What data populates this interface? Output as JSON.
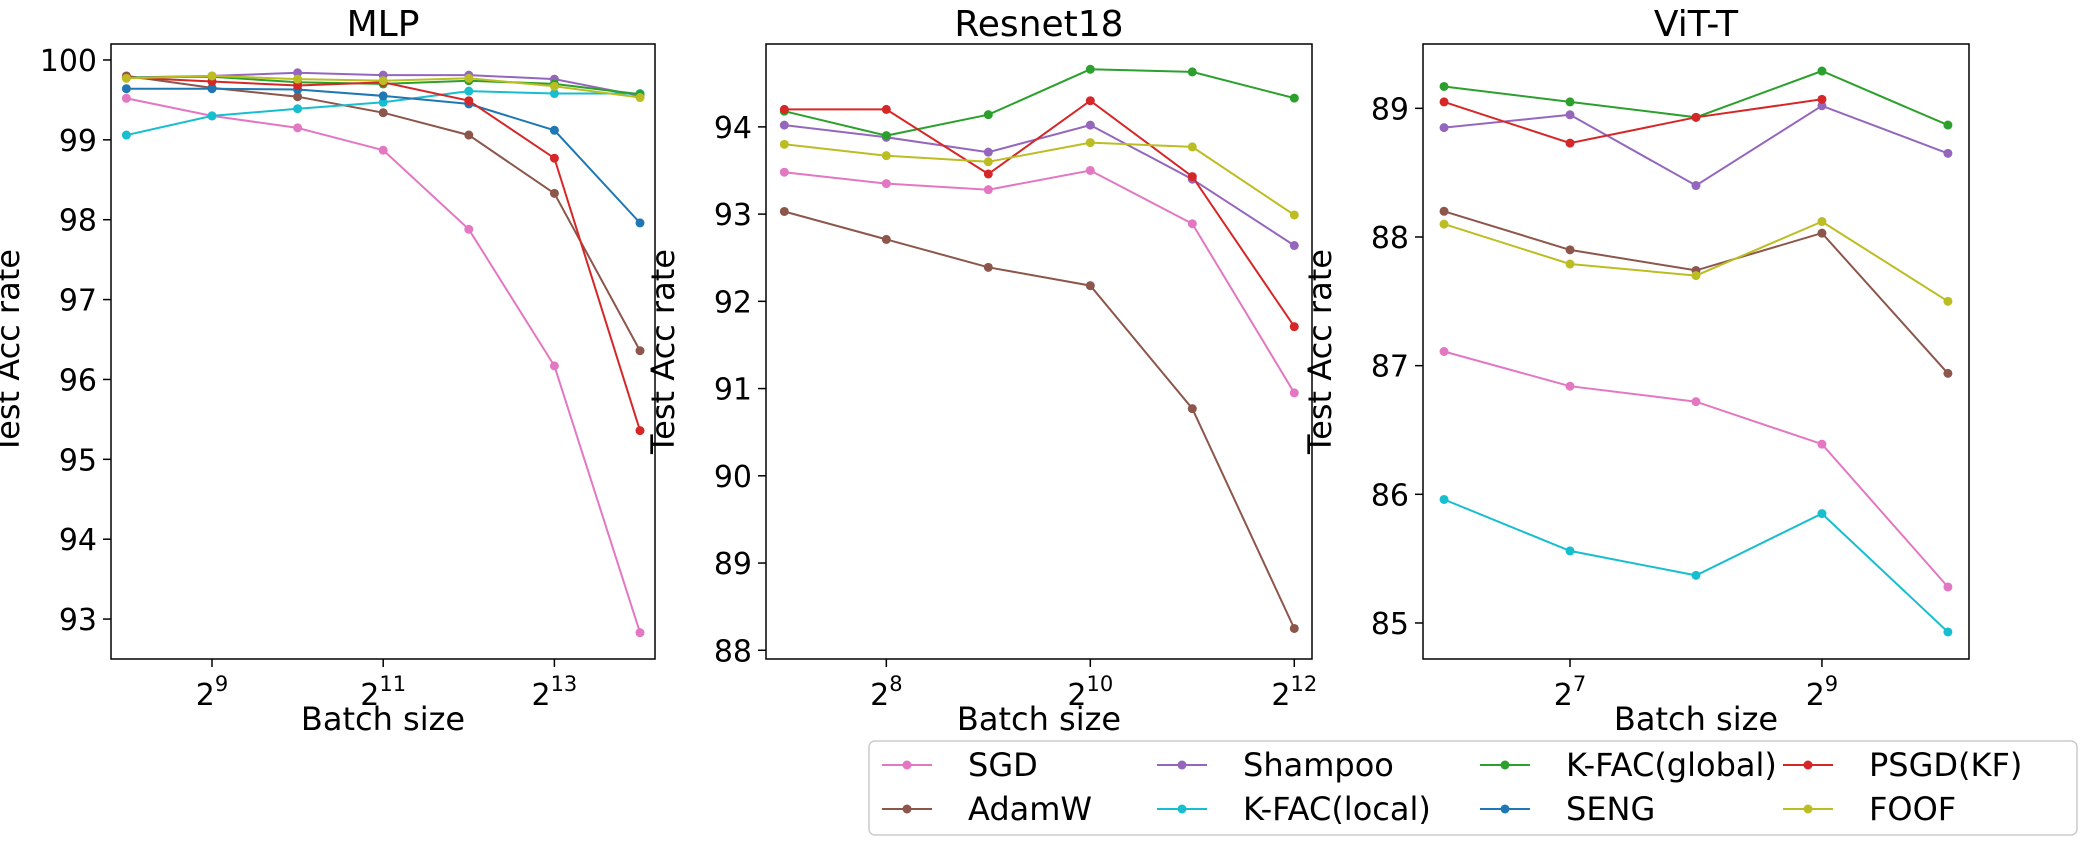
{
  "chart_data": [
    {
      "type": "line",
      "title": "MLP",
      "xlabel": "Batch size",
      "ylabel": "Test Acc rate",
      "x_scale": "log2",
      "x": [
        256,
        512,
        1024,
        2048,
        4096,
        8192,
        16384
      ],
      "x_ticks": [
        512,
        2048,
        8192
      ],
      "x_tick_labels": [
        {
          "base": "2",
          "exp": "9"
        },
        {
          "base": "2",
          "exp": "11"
        },
        {
          "base": "2",
          "exp": "13"
        }
      ],
      "xlim": [
        226,
        18500
      ],
      "ylim": [
        92.5,
        100.2
      ],
      "y_ticks": [
        93,
        94,
        95,
        96,
        97,
        98,
        99,
        100
      ],
      "series": [
        {
          "name": "SGD",
          "values": [
            99.52,
            99.3,
            99.15,
            98.87,
            97.88,
            96.17,
            92.83
          ]
        },
        {
          "name": "AdamW",
          "values": [
            99.8,
            99.65,
            99.54,
            99.34,
            99.06,
            98.33,
            96.36
          ]
        },
        {
          "name": "Shampoo",
          "values": [
            99.78,
            99.8,
            99.84,
            99.81,
            99.81,
            99.76,
            99.55
          ]
        },
        {
          "name": "K-FAC(local)",
          "values": [
            99.06,
            99.3,
            99.39,
            99.47,
            99.61,
            99.58,
            99.58
          ]
        },
        {
          "name": "K-FAC(global)",
          "values": [
            99.78,
            99.79,
            99.72,
            99.7,
            99.74,
            99.7,
            99.57
          ]
        },
        {
          "name": "SENG",
          "values": [
            99.64,
            99.64,
            99.63,
            99.55,
            99.45,
            99.12,
            97.96
          ]
        },
        {
          "name": "PSGD(KF)",
          "values": [
            99.78,
            99.73,
            99.68,
            99.72,
            99.49,
            98.77,
            95.36
          ]
        },
        {
          "name": "FOOF",
          "values": [
            99.77,
            99.8,
            99.76,
            99.74,
            99.77,
            99.67,
            99.53
          ]
        }
      ]
    },
    {
      "type": "line",
      "title": "Resnet18",
      "xlabel": "Batch size",
      "ylabel": "Test Acc rate",
      "x_scale": "log2",
      "x": [
        128,
        256,
        512,
        1024,
        2048,
        4096
      ],
      "x_ticks": [
        256,
        1024,
        4096
      ],
      "x_tick_labels": [
        {
          "base": "2",
          "exp": "8"
        },
        {
          "base": "2",
          "exp": "10"
        },
        {
          "base": "2",
          "exp": "12"
        }
      ],
      "xlim": [
        113,
        4620
      ],
      "ylim": [
        87.9,
        94.95
      ],
      "y_ticks": [
        88,
        89,
        90,
        91,
        92,
        93,
        94
      ],
      "series": [
        {
          "name": "SGD",
          "values": [
            93.48,
            93.35,
            93.28,
            93.5,
            92.89,
            90.95
          ]
        },
        {
          "name": "AdamW",
          "values": [
            93.03,
            92.71,
            92.39,
            92.18,
            90.77,
            88.25
          ]
        },
        {
          "name": "Shampoo",
          "values": [
            94.02,
            93.88,
            93.71,
            94.02,
            93.4,
            92.64
          ]
        },
        {
          "name": "K-FAC(global)",
          "values": [
            94.18,
            93.9,
            94.14,
            94.66,
            94.63,
            94.33
          ]
        },
        {
          "name": "PSGD(KF)",
          "values": [
            94.2,
            94.2,
            93.46,
            94.3,
            93.43,
            91.71
          ]
        },
        {
          "name": "FOOF",
          "values": [
            93.8,
            93.67,
            93.6,
            93.82,
            93.77,
            92.99
          ]
        }
      ]
    },
    {
      "type": "line",
      "title": "ViT-T",
      "xlabel": "Batch size",
      "ylabel": "Test Acc rate",
      "x_scale": "log2",
      "x": [
        64,
        128,
        256,
        512,
        1024
      ],
      "x_ticks": [
        128,
        512
      ],
      "x_tick_labels": [
        {
          "base": "2",
          "exp": "7"
        },
        {
          "base": "2",
          "exp": "9"
        }
      ],
      "xlim": [
        57,
        1150
      ],
      "ylim": [
        84.72,
        89.5
      ],
      "y_ticks": [
        85,
        86,
        87,
        88,
        89
      ],
      "series": [
        {
          "name": "SGD",
          "values": [
            87.11,
            86.84,
            86.72,
            86.39,
            85.28
          ]
        },
        {
          "name": "AdamW",
          "values": [
            88.2,
            87.9,
            87.74,
            88.03,
            86.94
          ]
        },
        {
          "name": "Shampoo",
          "values": [
            88.85,
            88.95,
            88.4,
            89.02,
            88.65
          ]
        },
        {
          "name": "K-FAC(local)",
          "values": [
            85.96,
            85.56,
            85.37,
            85.85,
            84.93
          ]
        },
        {
          "name": "K-FAC(global)",
          "values": [
            89.17,
            89.05,
            88.93,
            89.29,
            88.87
          ]
        },
        {
          "name": "PSGD(KF)",
          "values": [
            89.05,
            88.73,
            88.93,
            89.07,
            null
          ]
        },
        {
          "name": "FOOF",
          "values": [
            88.1,
            87.79,
            87.7,
            88.12,
            87.5
          ]
        }
      ]
    }
  ],
  "legend": {
    "location": "bottom-right",
    "entries": [
      {
        "name": "SGD",
        "color": "#e377c2"
      },
      {
        "name": "Shampoo",
        "color": "#9467bd"
      },
      {
        "name": "K-FAC(global)",
        "color": "#2ca02c"
      },
      {
        "name": "PSGD(KF)",
        "color": "#d62728"
      },
      {
        "name": "AdamW",
        "color": "#8c564b"
      },
      {
        "name": "K-FAC(local)",
        "color": "#17becf"
      },
      {
        "name": "SENG",
        "color": "#1f77b4"
      },
      {
        "name": "FOOF",
        "color": "#bcbd22"
      }
    ]
  },
  "series_colors": {
    "SGD": "#e377c2",
    "AdamW": "#8c564b",
    "Shampoo": "#9467bd",
    "K-FAC(local)": "#17becf",
    "K-FAC(global)": "#2ca02c",
    "SENG": "#1f77b4",
    "PSGD(KF)": "#d62728",
    "FOOF": "#bcbd22"
  }
}
